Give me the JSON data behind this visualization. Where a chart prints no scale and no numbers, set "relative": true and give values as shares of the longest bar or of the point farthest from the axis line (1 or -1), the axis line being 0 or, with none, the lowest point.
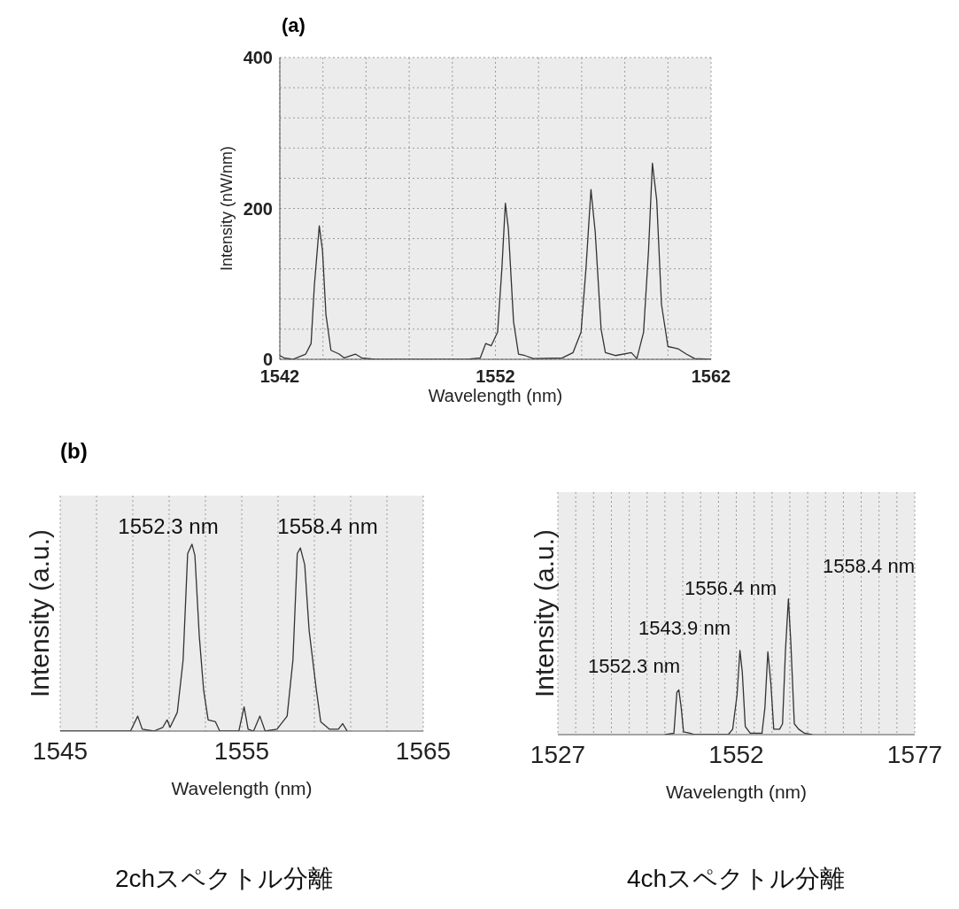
{
  "chart_data": [
    {
      "type": "line",
      "title": "(a)",
      "xlabel": "Wavelength  (nm)",
      "ylabel": "Intensity  (nW/nm)",
      "color": "#333333",
      "grid": true,
      "xlim": [
        1542,
        1562
      ],
      "xticks": [
        1542,
        {
          "value": 1544,
          "label": null
        },
        {
          "value": 1546,
          "label": null
        },
        {
          "value": 1548,
          "label": null
        },
        {
          "value": 1550,
          "label": null
        },
        1552,
        {
          "value": 1554,
          "label": null
        },
        {
          "value": 1556,
          "label": null
        },
        {
          "value": 1558,
          "label": null
        },
        {
          "value": 1560,
          "label": null
        },
        1562
      ],
      "ylim": [
        0,
        400
      ],
      "yticks": [
        0,
        {
          "value": 40,
          "label": null
        },
        {
          "value": 80,
          "label": null
        },
        {
          "value": 120,
          "label": null
        },
        {
          "value": 160,
          "label": null
        },
        200,
        {
          "value": 240,
          "label": null
        },
        {
          "value": 280,
          "label": null
        },
        {
          "value": 320,
          "label": null
        },
        {
          "value": 360,
          "label": null
        },
        400
      ],
      "x": [
        1542,
        1542.2,
        1542.6,
        1543.2,
        1543.45,
        1543.6,
        1543.83,
        1543.98,
        1544.14,
        1544.37,
        1544.75,
        1544.98,
        1545.5,
        1545.8,
        1546.4,
        1550.7,
        1551.3,
        1551.55,
        1551.8,
        1552.1,
        1552.3,
        1552.46,
        1552.6,
        1552.84,
        1553.07,
        1553.37,
        1553.76,
        1555.1,
        1555.6,
        1555.97,
        1556.2,
        1556.43,
        1556.63,
        1556.9,
        1557.1,
        1557.56,
        1558.3,
        1558.56,
        1558.87,
        1559.1,
        1559.28,
        1559.48,
        1559.7,
        1560.0,
        1560.47,
        1560.85,
        1561.24,
        1562
      ],
      "values": [
        5,
        2,
        0,
        7,
        21,
        97,
        177,
        144,
        59,
        12,
        7,
        2,
        7,
        2,
        0,
        0,
        2,
        21,
        18,
        36,
        121,
        207,
        173,
        50,
        7,
        5,
        1,
        2,
        9,
        36,
        121,
        225,
        168,
        40,
        9,
        5,
        9,
        1,
        36,
        144,
        260,
        211,
        73,
        17,
        14,
        7,
        1,
        0
      ]
    },
    {
      "type": "line",
      "title": "(b)",
      "xlabel": "Wavelength  (nm)",
      "ylabel": "Intensity (a.u.)",
      "color": "#333333",
      "grid": true,
      "relative": true,
      "xlim": [
        1545,
        1565
      ],
      "xticks": [
        1545,
        {
          "value": 1547,
          "label": null
        },
        {
          "value": 1549,
          "label": null
        },
        {
          "value": 1551,
          "label": null
        },
        {
          "value": 1553,
          "label": null
        },
        1555,
        {
          "value": 1557,
          "label": null
        },
        {
          "value": 1559,
          "label": null
        },
        {
          "value": 1561,
          "label": null
        },
        {
          "value": 1563,
          "label": null
        },
        1565
      ],
      "x": [
        1545,
        1548.87,
        1549.27,
        1549.52,
        1550.16,
        1550.65,
        1550.89,
        1551.05,
        1551.45,
        1551.77,
        1552.02,
        1552.26,
        1552.42,
        1552.66,
        1552.9,
        1553.15,
        1553.55,
        1553.79,
        1554.84,
        1555.13,
        1555.35,
        1555.65,
        1556.0,
        1556.29,
        1556.94,
        1557.5,
        1557.82,
        1558.06,
        1558.23,
        1558.47,
        1558.71,
        1559.11,
        1559.35,
        1559.84,
        1560.32,
        1560.56,
        1560.81
      ],
      "values": [
        0,
        0,
        0.08,
        0.01,
        0,
        0.02,
        0.06,
        0.02,
        0.1,
        0.38,
        0.95,
        1,
        0.94,
        0.51,
        0.22,
        0.06,
        0.05,
        0,
        0,
        0.13,
        0.01,
        0,
        0.08,
        0,
        0.01,
        0.08,
        0.38,
        0.95,
        0.98,
        0.89,
        0.54,
        0.22,
        0.05,
        0.01,
        0.01,
        0.04,
        0
      ],
      "annotations": [
        "1552.3 nm",
        "1558.4 nm",
        "2chスペクトル分離"
      ]
    },
    {
      "type": "line",
      "xlabel": "Wavelength  (nm)",
      "ylabel": "Intensity (a.u.)",
      "color": "#333333",
      "grid": true,
      "relative": true,
      "xlim": [
        1527,
        1577
      ],
      "xticks": [
        1527,
        {
          "value": 1529.5,
          "label": null
        },
        {
          "value": 1532,
          "label": null
        },
        {
          "value": 1534.5,
          "label": null
        },
        {
          "value": 1537,
          "label": null
        },
        {
          "value": 1539.5,
          "label": null
        },
        {
          "value": 1542,
          "label": null
        },
        {
          "value": 1544.5,
          "label": null
        },
        {
          "value": 1547,
          "label": null
        },
        {
          "value": 1549.5,
          "label": null
        },
        1552,
        {
          "value": 1554.5,
          "label": null
        },
        {
          "value": 1557,
          "label": null
        },
        {
          "value": 1559.5,
          "label": null
        },
        {
          "value": 1562,
          "label": null
        },
        {
          "value": 1564.5,
          "label": null
        },
        {
          "value": 1567,
          "label": null
        },
        {
          "value": 1569.5,
          "label": null
        },
        {
          "value": 1572,
          "label": null
        },
        {
          "value": 1574.5,
          "label": null
        },
        1577
      ],
      "x": [
        1542.02,
        1543.26,
        1543.67,
        1543.95,
        1544.28,
        1544.61,
        1545.52,
        1546.14,
        1550.87,
        1551.49,
        1552.1,
        1552.51,
        1552.84,
        1553.26,
        1553.95,
        1555.6,
        1556.01,
        1556.42,
        1556.84,
        1557.25,
        1558.07,
        1558.48,
        1558.89,
        1559.3,
        1559.63,
        1560.13,
        1560.74,
        1561.57,
        1562.6
      ],
      "values": [
        0,
        0.01,
        0.31,
        0.33,
        0.2,
        0.02,
        0.01,
        0,
        0,
        0.04,
        0.29,
        0.62,
        0.46,
        0.06,
        0.01,
        0.01,
        0.2,
        0.61,
        0.38,
        0.04,
        0.04,
        0.08,
        0.62,
        1,
        0.69,
        0.08,
        0.04,
        0.01,
        0
      ],
      "annotations": [
        "1552.3 nm",
        "1543.9 nm",
        "1556.4 nm",
        "1558.4 nm",
        "4chスペクトル分離"
      ]
    }
  ]
}
